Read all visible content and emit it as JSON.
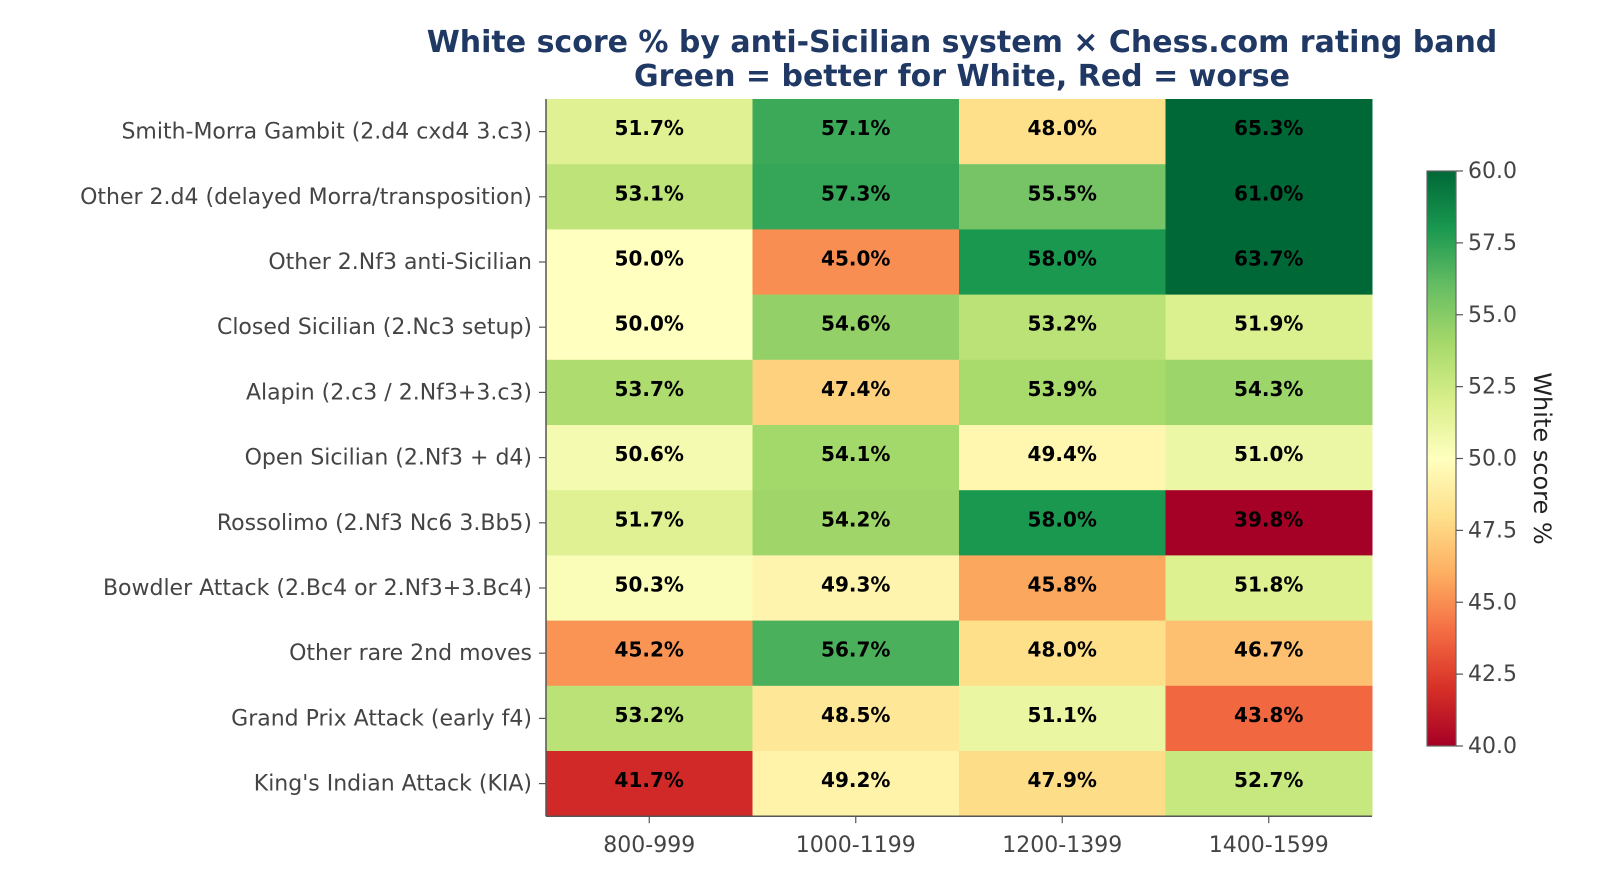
{
  "chart_data": {
    "type": "heatmap",
    "title": "White score % by anti-Sicilian system × Chess.com rating band",
    "subtitle": "Green = better for White, Red = worse",
    "rows": [
      "Smith-Morra Gambit (2.d4 cxd4 3.c3)",
      "Other 2.d4 (delayed Morra/transposition)",
      "Other 2.Nf3 anti-Sicilian",
      "Closed Sicilian (2.Nc3 setup)",
      "Alapin (2.c3 / 2.Nf3+3.c3)",
      "Open Sicilian (2.Nf3 + d4)",
      "Rossolimo (2.Nf3 Nc6 3.Bb5)",
      "Bowdler Attack (2.Bc4 or 2.Nf3+3.Bc4)",
      "Other rare 2nd moves",
      "Grand Prix Attack (early f4)",
      "King's Indian Attack (KIA)"
    ],
    "columns": [
      "800-999",
      "1000-1199",
      "1200-1399",
      "1400-1599"
    ],
    "values": [
      [
        51.7,
        57.1,
        48.0,
        65.3
      ],
      [
        53.1,
        57.3,
        55.5,
        61.0
      ],
      [
        50.0,
        45.0,
        58.0,
        63.7
      ],
      [
        50.0,
        54.6,
        53.2,
        51.9
      ],
      [
        53.7,
        47.4,
        53.9,
        54.3
      ],
      [
        50.6,
        54.1,
        49.4,
        51.0
      ],
      [
        51.7,
        54.2,
        58.0,
        39.8
      ],
      [
        50.3,
        49.3,
        45.8,
        51.8
      ],
      [
        45.2,
        56.7,
        48.0,
        46.7
      ],
      [
        53.2,
        48.5,
        51.1,
        43.8
      ],
      [
        41.7,
        49.2,
        47.9,
        52.7
      ]
    ],
    "cell_labels": [
      [
        "51.7%",
        "57.1%",
        "48.0%",
        "65.3%"
      ],
      [
        "53.1%",
        "57.3%",
        "55.5%",
        "61.0%"
      ],
      [
        "50.0%",
        "45.0%",
        "58.0%",
        "63.7%"
      ],
      [
        "50.0%",
        "54.6%",
        "53.2%",
        "51.9%"
      ],
      [
        "53.7%",
        "47.4%",
        "53.9%",
        "54.3%"
      ],
      [
        "50.6%",
        "54.1%",
        "49.4%",
        "51.0%"
      ],
      [
        "51.7%",
        "54.2%",
        "58.0%",
        "39.8%"
      ],
      [
        "50.3%",
        "49.3%",
        "45.8%",
        "51.8%"
      ],
      [
        "45.2%",
        "56.7%",
        "48.0%",
        "46.7%"
      ],
      [
        "53.2%",
        "48.5%",
        "51.1%",
        "43.8%"
      ],
      [
        "41.7%",
        "49.2%",
        "47.9%",
        "52.7%"
      ]
    ],
    "colorscale": "RdYlGn",
    "vmin": 40.0,
    "vmax": 60.0,
    "colorbar_label": "White score %",
    "colorbar_ticks": [
      "40.0",
      "42.5",
      "45.0",
      "47.5",
      "50.0",
      "52.5",
      "55.0",
      "57.5",
      "60.0"
    ],
    "colors": {
      "title": "#1f3864",
      "colormap_stops": [
        "#a50026",
        "#d73027",
        "#f46d43",
        "#fdae61",
        "#fee08b",
        "#ffffbf",
        "#d9ef8b",
        "#a6d96a",
        "#66bd63",
        "#1a9850",
        "#006837"
      ]
    }
  }
}
